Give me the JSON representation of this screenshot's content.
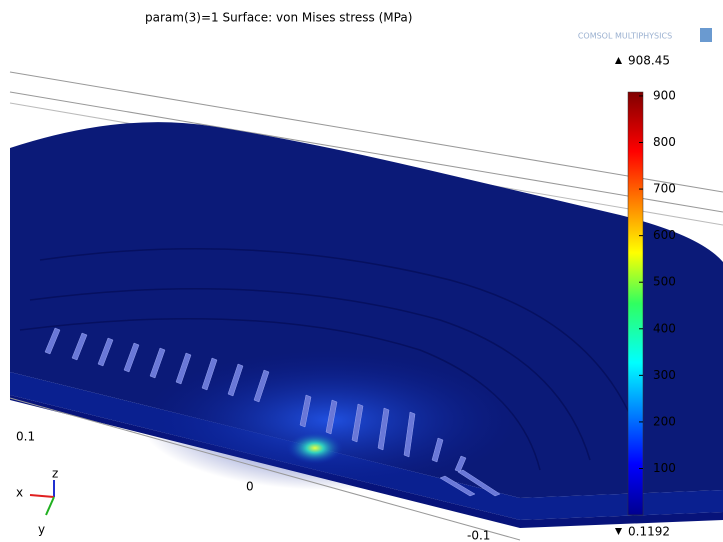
{
  "header": {
    "title": "param(3)=1   Surface: von Mises stress (MPa)",
    "logo": "COMSOL MULTIPHYSICS"
  },
  "colorbar": {
    "max": 908.45,
    "min": 0.1192,
    "ticks": [
      900,
      800,
      700,
      600,
      500,
      400,
      300,
      200,
      100
    ]
  },
  "axis_labels": [
    "0.1",
    "0",
    "-0.1"
  ],
  "triad": {
    "x": "x",
    "y": "y",
    "z": "z"
  }
}
